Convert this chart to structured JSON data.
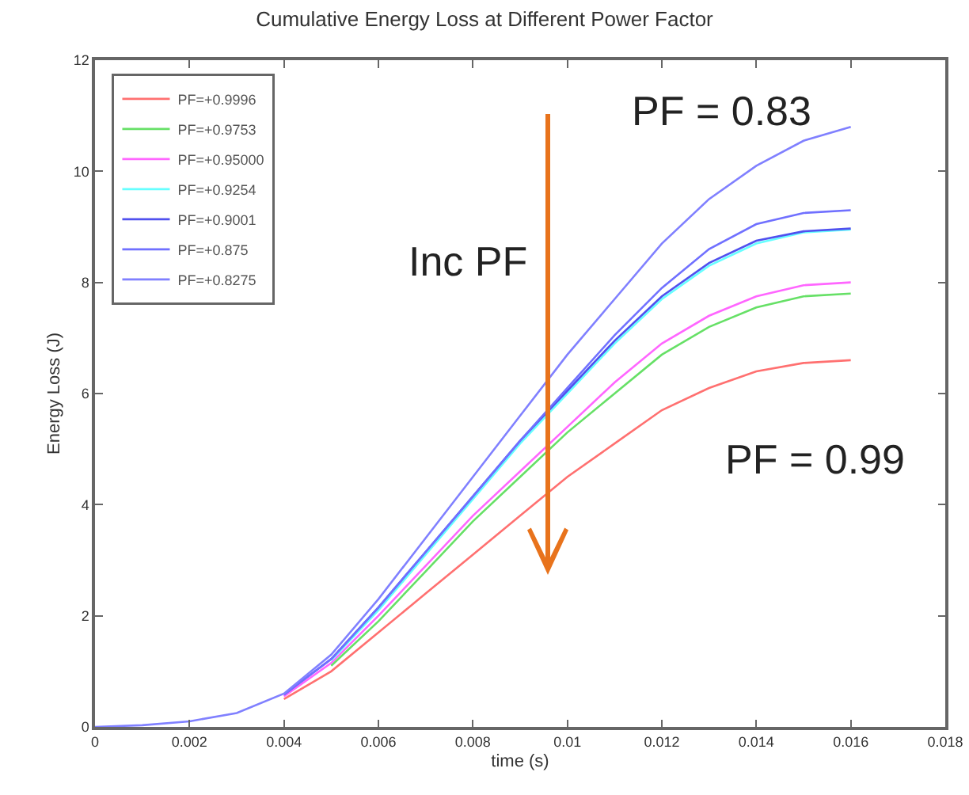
{
  "chart_data": {
    "type": "line",
    "title": "Cumulative Energy Loss at Different Power Factor",
    "xlabel": "time (s)",
    "ylabel": "Energy Loss (J)",
    "x": [
      0,
      0.001,
      0.002,
      0.003,
      0.004,
      0.005,
      0.006,
      0.007,
      0.008,
      0.009,
      0.01,
      0.011,
      0.012,
      0.013,
      0.014,
      0.015,
      0.016
    ],
    "series": [
      {
        "name": "PF=+0.9996",
        "color": "#ff7070",
        "values": [
          null,
          null,
          null,
          null,
          0.5,
          1.0,
          1.7,
          2.4,
          3.1,
          3.8,
          4.5,
          5.1,
          5.7,
          6.1,
          6.4,
          6.55,
          6.6
        ]
      },
      {
        "name": "PF=+0.9753",
        "color": "#66e066",
        "values": [
          null,
          null,
          null,
          null,
          null,
          1.1,
          1.9,
          2.8,
          3.7,
          4.5,
          5.3,
          6.0,
          6.7,
          7.2,
          7.55,
          7.75,
          7.8
        ]
      },
      {
        "name": "PF=+0.95000",
        "color": "#ff66ff",
        "values": [
          null,
          null,
          null,
          null,
          0.55,
          1.15,
          2.0,
          2.9,
          3.8,
          4.6,
          5.4,
          6.2,
          6.9,
          7.4,
          7.75,
          7.95,
          8.0
        ]
      },
      {
        "name": "PF=+0.9254",
        "color": "#66ffff",
        "values": [
          null,
          null,
          null,
          null,
          null,
          1.2,
          2.1,
          3.1,
          4.1,
          5.1,
          6.0,
          6.9,
          7.7,
          8.3,
          8.7,
          8.9,
          8.95
        ]
      },
      {
        "name": "PF=+0.9001",
        "color": "#5050ee",
        "values": [
          null,
          null,
          null,
          null,
          0.58,
          1.22,
          2.15,
          3.15,
          4.15,
          5.15,
          6.05,
          6.95,
          7.75,
          8.35,
          8.75,
          8.92,
          8.97
        ]
      },
      {
        "name": "PF=+0.875",
        "color": "#7070ff",
        "values": [
          null,
          null,
          null,
          null,
          0.58,
          1.22,
          2.15,
          3.15,
          4.15,
          5.15,
          6.1,
          7.05,
          7.9,
          8.6,
          9.05,
          9.25,
          9.3
        ]
      },
      {
        "name": "PF=+0.8275",
        "color": "#8080ff",
        "values": [
          0,
          0.03,
          0.1,
          0.25,
          0.6,
          1.3,
          2.3,
          3.4,
          4.5,
          5.6,
          6.7,
          7.7,
          8.7,
          9.5,
          10.1,
          10.55,
          10.8
        ]
      }
    ],
    "xlim": [
      0,
      0.018
    ],
    "xticks": [
      0,
      0.002,
      0.004,
      0.006,
      0.008,
      0.01,
      0.012,
      0.014,
      0.016,
      0.018
    ],
    "ylim": [
      0,
      12
    ],
    "yticks": [
      0,
      2,
      4,
      6,
      8,
      10,
      12
    ],
    "grid": false,
    "legend": "top left",
    "marker": "none",
    "line_style": "solid",
    "annotations": [
      "PF = 0.83",
      "Inc PF",
      "PF = 0.99"
    ]
  }
}
